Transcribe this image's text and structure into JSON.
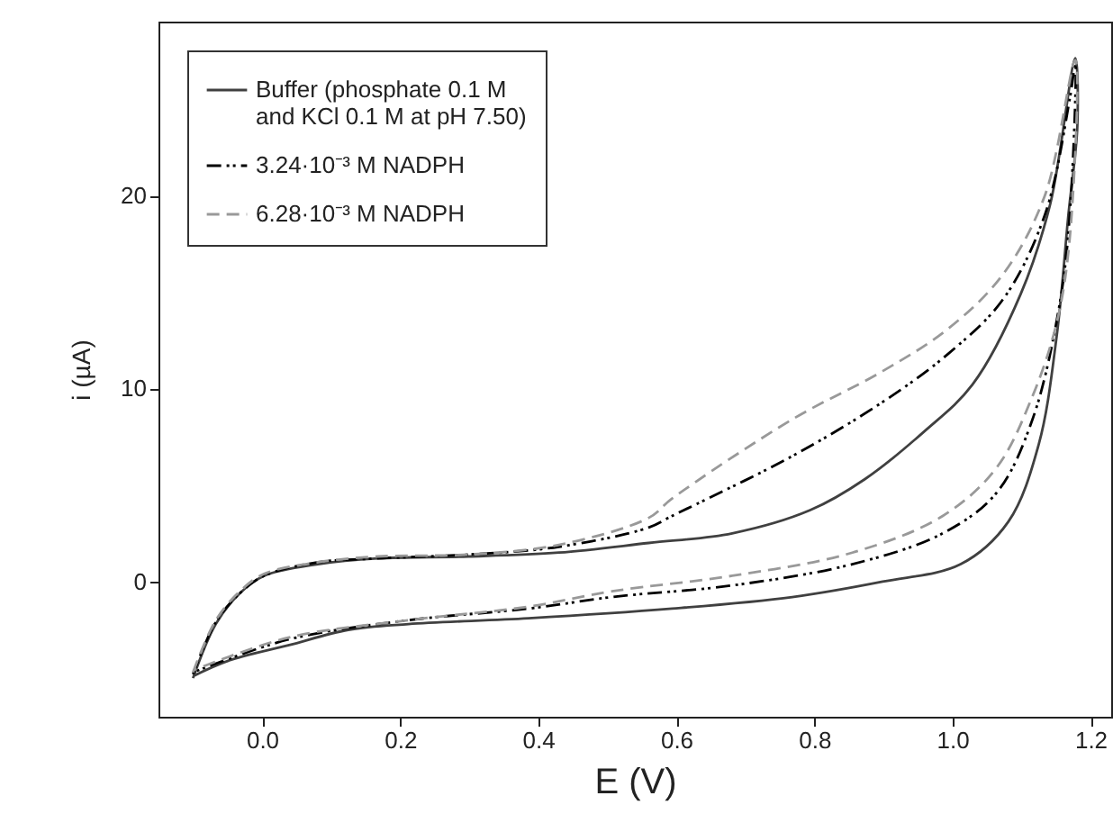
{
  "chart_data": {
    "type": "line",
    "xlabel": "E (V)",
    "ylabel": "i (µA)",
    "xlim": [
      -0.15,
      1.23
    ],
    "ylim": [
      -7,
      29
    ],
    "xticks": [
      {
        "value": 0,
        "label": "0.0"
      },
      0.2,
      0.4,
      0.6,
      0.8,
      {
        "value": 1,
        "label": "1.0"
      },
      1.2
    ],
    "yticks": [
      0,
      10,
      20
    ],
    "legend": "top left",
    "grid": false,
    "series": [
      {
        "name": "Buffer (phosphate 0.1 M\n and KCl 0.1 M at pH 7.50)",
        "color": "#404040",
        "line_style": "solid",
        "x": [
          -0.1,
          -0.067,
          -0.032,
          0.003,
          0.081,
          0.168,
          0.299,
          0.43,
          0.56,
          0.681,
          0.794,
          0.873,
          0.96,
          1.029,
          1.099,
          1.142,
          1.178,
          1.181,
          1.168,
          1.151,
          1.125,
          1.081,
          1.012,
          0.899,
          0.768,
          0.594,
          0.386,
          0.212,
          0.125,
          0.038,
          -0.049,
          -0.1
        ],
        "values": [
          -5.0,
          -2.2,
          -0.6,
          0.3,
          0.9,
          1.2,
          1.3,
          1.5,
          2.0,
          2.5,
          3.7,
          5.3,
          7.8,
          10.2,
          14.9,
          19.6,
          27.1,
          23.6,
          19.0,
          12.7,
          7.1,
          3.1,
          0.9,
          0.0,
          -0.8,
          -1.4,
          -1.9,
          -2.2,
          -2.5,
          -3.3,
          -4.1,
          -4.9
        ]
      },
      {
        "name": "3.24·10⁻³ M NADPH",
        "color": "#000000",
        "line_style": "dashdotdot",
        "x": [
          -0.1,
          -0.067,
          -0.032,
          0.003,
          0.081,
          0.168,
          0.299,
          0.43,
          0.56,
          0.594,
          0.768,
          0.899,
          0.994,
          1.073,
          1.134,
          1.17,
          1.178,
          1.17,
          1.155,
          1.116,
          1.064,
          0.986,
          0.855,
          0.681,
          0.507,
          0.386,
          0.212,
          0.038,
          -0.1
        ],
        "values": [
          -4.8,
          -2.1,
          -0.6,
          0.3,
          1.0,
          1.2,
          1.4,
          1.8,
          2.8,
          3.4,
          6.5,
          9.3,
          11.8,
          14.6,
          19.0,
          25.0,
          26.8,
          19.0,
          14.3,
          8.4,
          4.6,
          2.5,
          0.9,
          -0.2,
          -0.8,
          -1.4,
          -2.0,
          -3.0,
          -4.7
        ]
      },
      {
        "name": "6.28·10⁻³ M NADPH",
        "color": "#999999",
        "line_style": "dashed",
        "x": [
          -0.1,
          -0.067,
          -0.032,
          0.003,
          0.081,
          0.168,
          0.299,
          0.43,
          0.56,
          0.594,
          0.768,
          0.899,
          0.994,
          1.073,
          1.134,
          1.178,
          1.17,
          1.151,
          1.116,
          1.064,
          0.986,
          0.855,
          0.681,
          0.507,
          0.386,
          0.212,
          0.038,
          -0.1
        ],
        "values": [
          -4.7,
          -2.0,
          -0.5,
          0.4,
          1.0,
          1.3,
          1.4,
          1.9,
          3.3,
          4.3,
          8.4,
          10.9,
          13.1,
          15.9,
          20.0,
          27.0,
          17.8,
          13.4,
          9.6,
          5.9,
          3.4,
          1.5,
          0.3,
          -0.5,
          -1.3,
          -2.0,
          -2.9,
          -4.6
        ]
      }
    ]
  }
}
